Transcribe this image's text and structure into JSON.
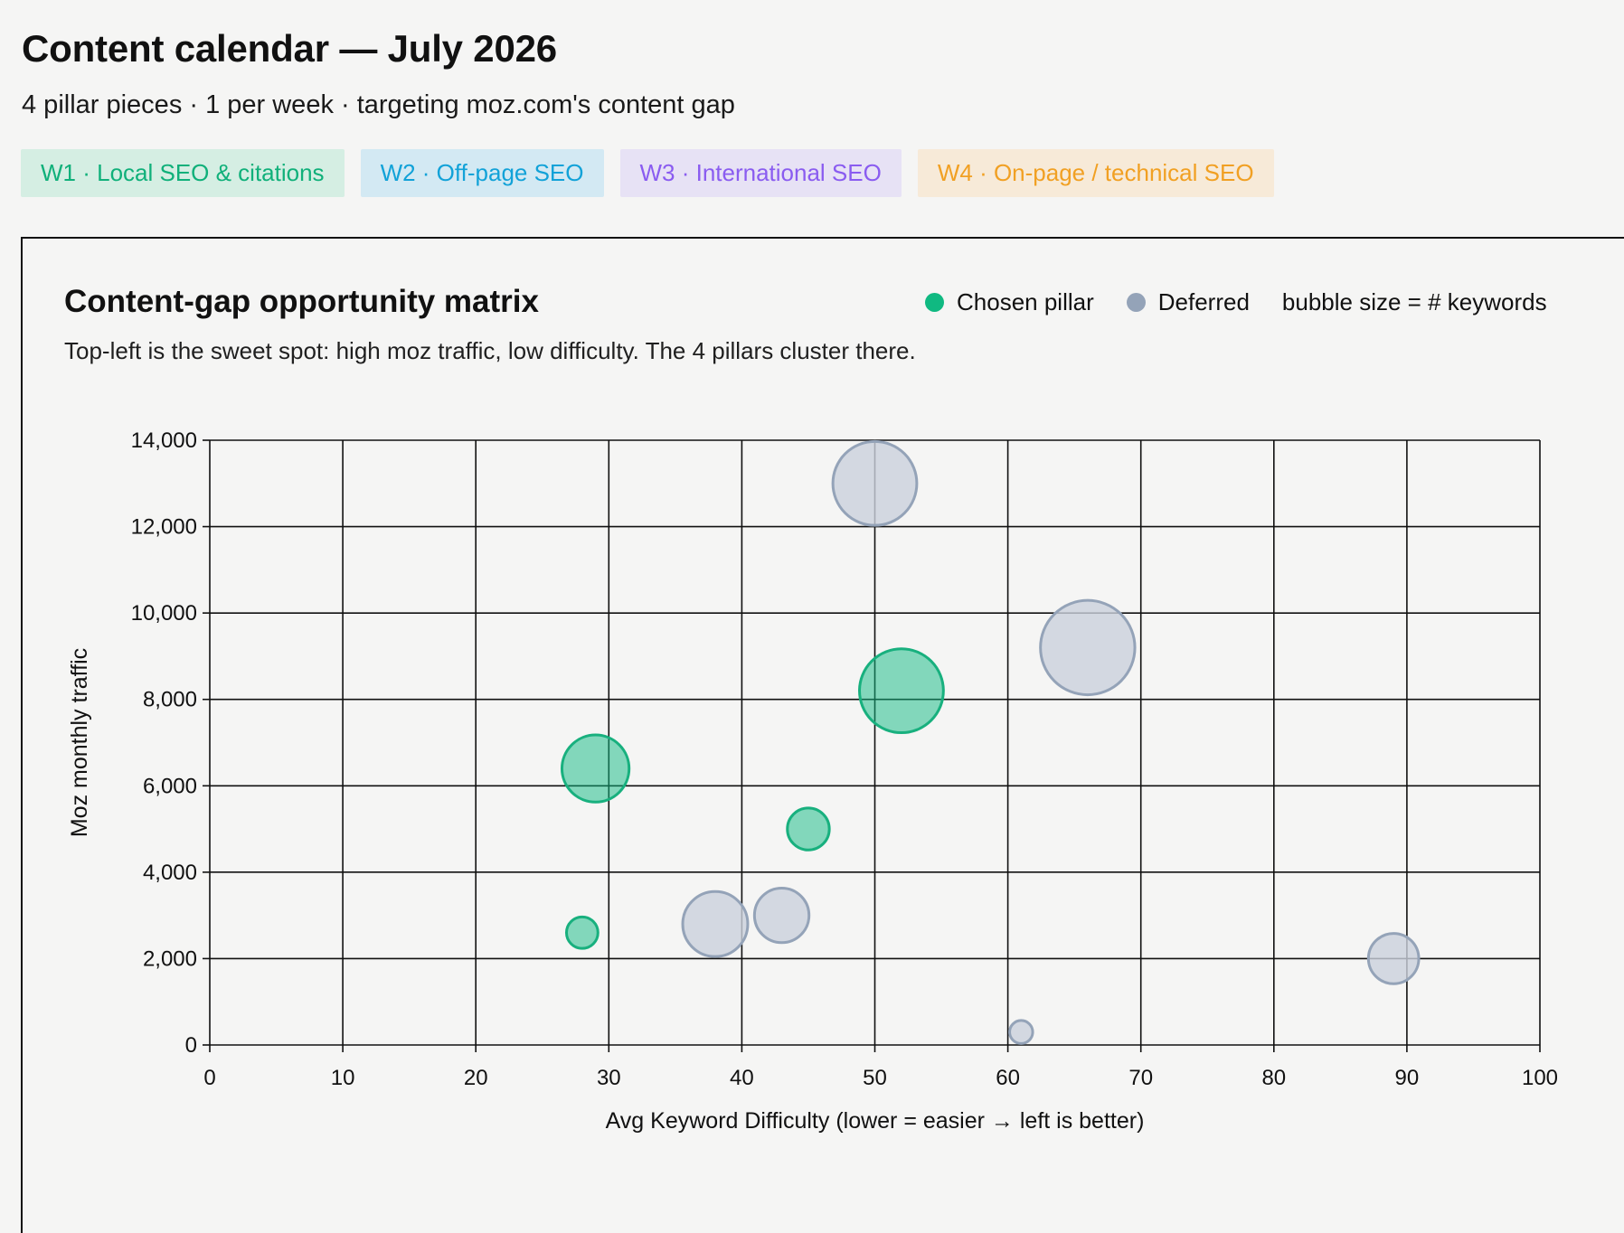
{
  "header": {
    "title": "Content calendar — July 2026",
    "subtitle": "4 pillar pieces · 1 per week · targeting moz.com's content gap"
  },
  "weeks": [
    {
      "label": "W1 · Local SEO & citations",
      "color": "#10b07a"
    },
    {
      "label": "W2 · Off-page SEO",
      "color": "#12a2d8"
    },
    {
      "label": "W3 · International SEO",
      "color": "#8a5cf0"
    },
    {
      "label": "W4 · On-page / technical SEO",
      "color": "#f1a023"
    }
  ],
  "chart": {
    "title": "Content-gap opportunity matrix",
    "subtitle": "Top-left is the sweet spot: high moz traffic, low difficulty. The 4 pillars cluster there.",
    "legend": {
      "chosen": "Chosen pillar",
      "deferred": "Deferred",
      "size_note": "bubble size = # keywords",
      "placement": "top-right"
    }
  },
  "chart_data": {
    "type": "scatter",
    "xlabel": "Avg Keyword Difficulty  (lower = easier → left is better)",
    "ylabel": "Moz monthly traffic",
    "xlim": [
      0,
      100
    ],
    "ylim": [
      0,
      14000
    ],
    "xticks": [
      0,
      10,
      20,
      30,
      40,
      50,
      60,
      70,
      80,
      90,
      100
    ],
    "yticks": [
      0,
      2000,
      4000,
      6000,
      8000,
      10000,
      12000,
      14000
    ],
    "grid": true,
    "size_encoding": "# keywords",
    "series": [
      {
        "name": "Chosen pillar",
        "color": "#10b981",
        "points": [
          {
            "x": 29,
            "y": 6400,
            "size": 32
          },
          {
            "x": 52,
            "y": 8200,
            "size": 40
          },
          {
            "x": 45,
            "y": 5000,
            "size": 20
          },
          {
            "x": 28,
            "y": 2600,
            "size": 15
          }
        ]
      },
      {
        "name": "Deferred",
        "color": "#94a3b8",
        "points": [
          {
            "x": 50,
            "y": 13000,
            "size": 40
          },
          {
            "x": 66,
            "y": 9200,
            "size": 45
          },
          {
            "x": 38,
            "y": 2800,
            "size": 31
          },
          {
            "x": 43,
            "y": 3000,
            "size": 26
          },
          {
            "x": 89,
            "y": 2000,
            "size": 24
          },
          {
            "x": 61,
            "y": 300,
            "size": 11
          }
        ]
      }
    ]
  }
}
